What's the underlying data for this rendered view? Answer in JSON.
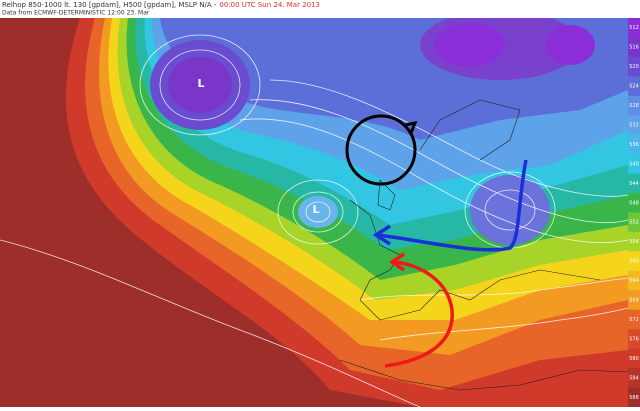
{
  "header": {
    "title": "Relhop 850-1000 lt. 130 [gpdam], H500 [gpdam], MSLP N/A -",
    "time": "00:00 UTC Sun 24. Mar 2013",
    "source": "Data from ECMWF-DETERMINISTIC 12:00 23. Mar"
  },
  "map": {
    "lows": [
      "L",
      "L"
    ]
  },
  "colorbar": {
    "labels": [
      "512",
      "516",
      "520",
      "524",
      "528",
      "532",
      "536",
      "540",
      "544",
      "548",
      "552",
      "556",
      "560",
      "564",
      "568",
      "572",
      "576",
      "580",
      "584",
      "588"
    ]
  }
}
